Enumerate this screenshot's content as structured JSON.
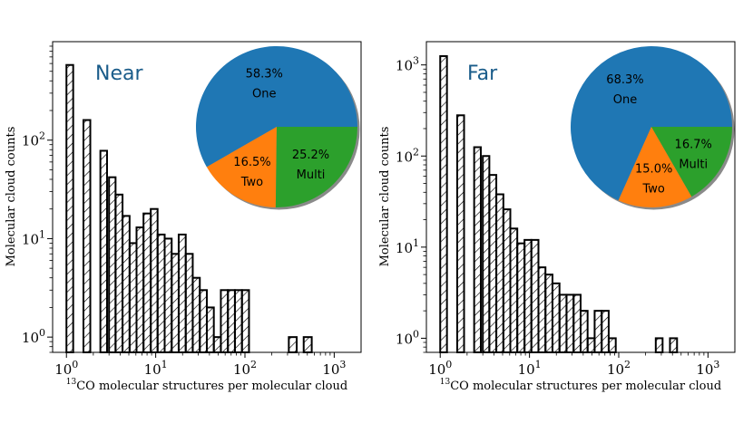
{
  "chart_data": [
    {
      "type": "bar",
      "panel": "left",
      "label": "Near",
      "xscale": "log",
      "yscale": "log",
      "xlim": [
        0.7,
        2000
      ],
      "ylim": [
        0.7,
        1000
      ],
      "xlabel_sup": "13",
      "xlabel": "CO molecular structures per molecular cloud",
      "ylabel": "Molecular cloud counts",
      "xticks": [
        {
          "b": "10",
          "e": "0",
          "v": 1
        },
        {
          "b": "10",
          "e": "1",
          "v": 10
        },
        {
          "b": "10",
          "e": "2",
          "v": 100
        },
        {
          "b": "10",
          "e": "3",
          "v": 1000
        }
      ],
      "yticks": [
        {
          "b": "10",
          "e": "0",
          "v": 1
        },
        {
          "b": "10",
          "e": "1",
          "v": 10
        },
        {
          "b": "10",
          "e": "2",
          "v": 100
        }
      ],
      "bins": [
        {
          "x0": 1.0,
          "x1": 1.19,
          "count": 580
        },
        {
          "x0": 1.55,
          "x1": 1.85,
          "count": 160
        },
        {
          "x0": 2.4,
          "x1": 2.85,
          "count": 78
        },
        {
          "x0": 3.0,
          "x1": 3.55,
          "count": 42
        },
        {
          "x0": 3.55,
          "x1": 4.25,
          "count": 28
        },
        {
          "x0": 4.25,
          "x1": 5.1,
          "count": 17
        },
        {
          "x0": 5.1,
          "x1": 6.1,
          "count": 9
        },
        {
          "x0": 6.1,
          "x1": 7.3,
          "count": 13
        },
        {
          "x0": 7.3,
          "x1": 8.8,
          "count": 18
        },
        {
          "x0": 8.8,
          "x1": 10.5,
          "count": 20
        },
        {
          "x0": 10.5,
          "x1": 12.6,
          "count": 11
        },
        {
          "x0": 12.6,
          "x1": 15.1,
          "count": 10
        },
        {
          "x0": 15.1,
          "x1": 18.1,
          "count": 7
        },
        {
          "x0": 18.1,
          "x1": 21.7,
          "count": 11
        },
        {
          "x0": 21.7,
          "x1": 26.0,
          "count": 7
        },
        {
          "x0": 26.0,
          "x1": 31.2,
          "count": 4
        },
        {
          "x0": 31.2,
          "x1": 37.4,
          "count": 3
        },
        {
          "x0": 37.4,
          "x1": 44.8,
          "count": 2
        },
        {
          "x0": 44.8,
          "x1": 53.7,
          "count": 1
        },
        {
          "x0": 53.7,
          "x1": 64.4,
          "count": 3
        },
        {
          "x0": 64.4,
          "x1": 77.2,
          "count": 3
        },
        {
          "x0": 77.2,
          "x1": 92.6,
          "count": 3
        },
        {
          "x0": 92.6,
          "x1": 111,
          "count": 3
        },
        {
          "x0": 310,
          "x1": 380,
          "count": 1
        },
        {
          "x0": 455,
          "x1": 560,
          "count": 1
        }
      ],
      "pie": {
        "slices": [
          {
            "label": "One",
            "percent": "58.3%",
            "value": 58.3,
            "color": "#1f77b4"
          },
          {
            "label": "Two",
            "percent": "16.5%",
            "value": 16.5,
            "color": "#ff7f0e"
          },
          {
            "label": "Multi",
            "percent": "25.2%",
            "value": 25.2,
            "color": "#2ca02c"
          }
        ]
      }
    },
    {
      "type": "bar",
      "panel": "right",
      "label": "Far",
      "xscale": "log",
      "yscale": "log",
      "xlim": [
        0.7,
        2000
      ],
      "ylim": [
        0.7,
        1800
      ],
      "xlabel_sup": "13",
      "xlabel": "CO molecular structures per molecular cloud",
      "ylabel": "Molecular cloud counts",
      "xticks": [
        {
          "b": "10",
          "e": "0",
          "v": 1
        },
        {
          "b": "10",
          "e": "1",
          "v": 10
        },
        {
          "b": "10",
          "e": "2",
          "v": 100
        },
        {
          "b": "10",
          "e": "3",
          "v": 1000
        }
      ],
      "yticks": [
        {
          "b": "10",
          "e": "0",
          "v": 1
        },
        {
          "b": "10",
          "e": "1",
          "v": 10
        },
        {
          "b": "10",
          "e": "2",
          "v": 100
        },
        {
          "b": "10",
          "e": "3",
          "v": 1000
        }
      ],
      "bins": [
        {
          "x0": 1.0,
          "x1": 1.19,
          "count": 1250
        },
        {
          "x0": 1.55,
          "x1": 1.85,
          "count": 280
        },
        {
          "x0": 2.4,
          "x1": 2.85,
          "count": 125
        },
        {
          "x0": 3.0,
          "x1": 3.55,
          "count": 100
        },
        {
          "x0": 3.55,
          "x1": 4.25,
          "count": 62
        },
        {
          "x0": 4.25,
          "x1": 5.1,
          "count": 38
        },
        {
          "x0": 5.1,
          "x1": 6.1,
          "count": 26
        },
        {
          "x0": 6.1,
          "x1": 7.3,
          "count": 16
        },
        {
          "x0": 7.3,
          "x1": 8.8,
          "count": 11
        },
        {
          "x0": 8.8,
          "x1": 10.5,
          "count": 12
        },
        {
          "x0": 10.5,
          "x1": 12.6,
          "count": 12
        },
        {
          "x0": 12.6,
          "x1": 15.1,
          "count": 6
        },
        {
          "x0": 15.1,
          "x1": 18.1,
          "count": 5
        },
        {
          "x0": 18.1,
          "x1": 21.7,
          "count": 4
        },
        {
          "x0": 21.7,
          "x1": 26.0,
          "count": 3
        },
        {
          "x0": 26.0,
          "x1": 31.2,
          "count": 3
        },
        {
          "x0": 31.2,
          "x1": 37.4,
          "count": 3
        },
        {
          "x0": 37.4,
          "x1": 44.8,
          "count": 2
        },
        {
          "x0": 44.8,
          "x1": 53.7,
          "count": 1
        },
        {
          "x0": 53.7,
          "x1": 64.4,
          "count": 2
        },
        {
          "x0": 64.4,
          "x1": 77.2,
          "count": 2
        },
        {
          "x0": 77.2,
          "x1": 92.6,
          "count": 1
        },
        {
          "x0": 260,
          "x1": 310,
          "count": 1
        },
        {
          "x0": 375,
          "x1": 450,
          "count": 1
        }
      ],
      "pie": {
        "slices": [
          {
            "label": "One",
            "percent": "68.3%",
            "value": 68.3,
            "color": "#1f77b4"
          },
          {
            "label": "Two",
            "percent": "15.0%",
            "value": 15.0,
            "color": "#ff7f0e"
          },
          {
            "label": "Multi",
            "percent": "16.7%",
            "value": 16.7,
            "color": "#2ca02c"
          }
        ]
      }
    }
  ]
}
